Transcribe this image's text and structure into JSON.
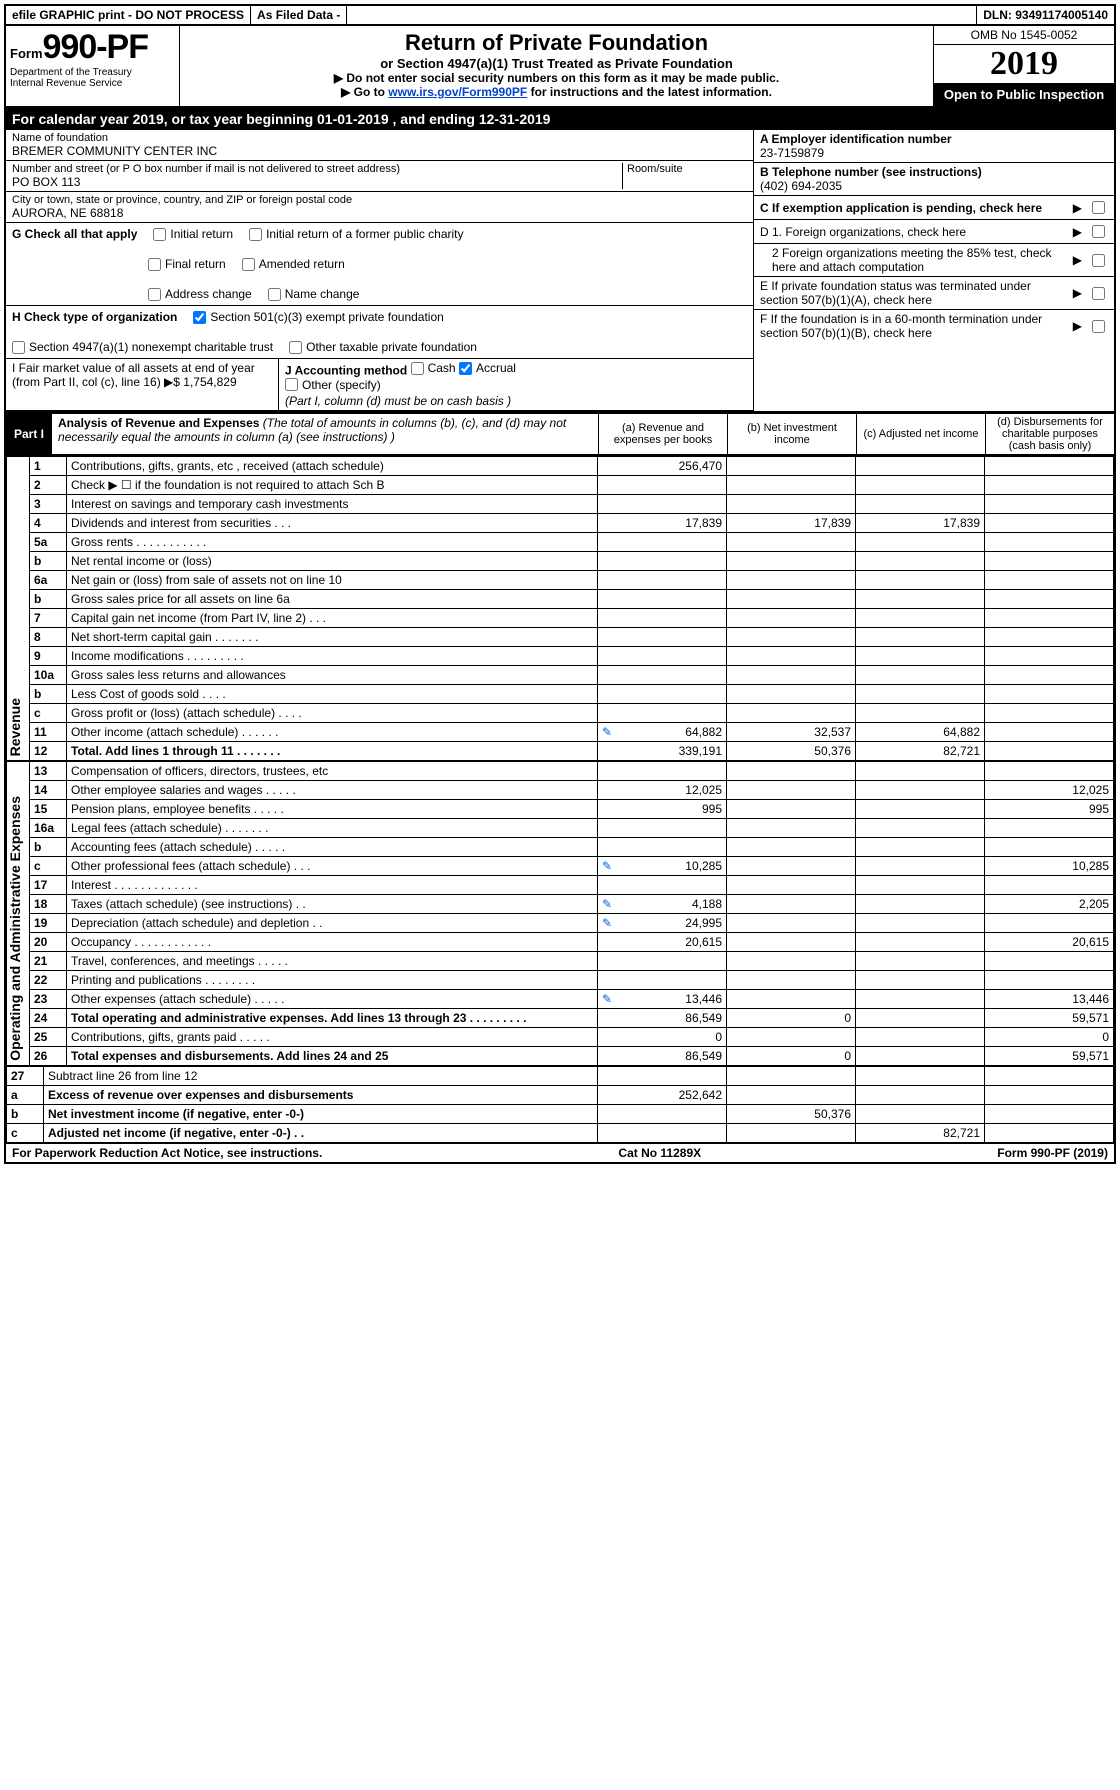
{
  "topbar": {
    "efile": "efile GRAPHIC print - DO NOT PROCESS",
    "asfiled": "As Filed Data -",
    "dln": "DLN: 93491174005140"
  },
  "header": {
    "form_prefix": "Form",
    "form_no": "990-PF",
    "dept1": "Department of the Treasury",
    "dept2": "Internal Revenue Service",
    "title": "Return of Private Foundation",
    "subtitle": "or Section 4947(a)(1) Trust Treated as Private Foundation",
    "note1": "▶ Do not enter social security numbers on this form as it may be made public.",
    "note2_pre": "▶ Go to ",
    "note2_link": "www.irs.gov/Form990PF",
    "note2_post": " for instructions and the latest information.",
    "omb": "OMB No 1545-0052",
    "year": "2019",
    "open": "Open to Public Inspection"
  },
  "calrow": "For calendar year 2019, or tax year beginning 01-01-2019          , and ending 12-31-2019",
  "id": {
    "name_lbl": "Name of foundation",
    "name": "BREMER COMMUNITY CENTER INC",
    "addr_lbl": "Number and street (or P O  box number if mail is not delivered to street address)",
    "addr": "PO BOX 113",
    "room_lbl": "Room/suite",
    "city_lbl": "City or town, state or province, country, and ZIP or foreign postal code",
    "city": "AURORA, NE  68818",
    "a_lbl": "A Employer identification number",
    "a_val": "23-7159879",
    "b_lbl": "B Telephone number (see instructions)",
    "b_val": "(402) 694-2035",
    "c_lbl": "C If exemption application is pending, check here"
  },
  "g": {
    "lbl": "G Check all that apply",
    "o1": "Initial return",
    "o2": "Initial return of a former public charity",
    "o3": "Final return",
    "o4": "Amended return",
    "o5": "Address change",
    "o6": "Name change"
  },
  "h": {
    "lbl": "H Check type of organization",
    "o1": "Section 501(c)(3) exempt private foundation",
    "o2": "Section 4947(a)(1) nonexempt charitable trust",
    "o3": "Other taxable private foundation"
  },
  "d": {
    "d1": "D 1. Foreign organizations, check here",
    "d2": "2 Foreign organizations meeting the 85% test, check here and attach computation",
    "e": "E  If private foundation status was terminated under section 507(b)(1)(A), check here",
    "f": "F  If the foundation is in a 60-month termination under section 507(b)(1)(B), check here"
  },
  "ij": {
    "i": "I Fair market value of all assets at end of year (from Part II, col (c), line 16) ▶$ 1,754,829",
    "j_lbl": "J Accounting method",
    "j_cash": "Cash",
    "j_accr": "Accrual",
    "j_other": "Other (specify)",
    "j_note": "(Part I, column (d) must be on cash basis )"
  },
  "part1": {
    "tag": "Part I",
    "title": "Analysis of Revenue and Expenses",
    "note": " (The total of amounts in columns (b), (c), and (d) may not necessarily equal the amounts in column (a) (see instructions) )",
    "col_a": "(a) Revenue and expenses per books",
    "col_b": "(b) Net investment income",
    "col_c": "(c) Adjusted net income",
    "col_d": "(d) Disbursements for charitable purposes (cash basis only)"
  },
  "side": {
    "rev": "Revenue",
    "exp": "Operating and Administrative Expenses"
  },
  "rows": [
    {
      "n": "1",
      "t": "Contributions, gifts, grants, etc , received (attach schedule)",
      "a": "256,470",
      "b": " ",
      "c": " ",
      "d": " ",
      "sA": 1,
      "sB": 0,
      "sC": 0,
      "sD": 0
    },
    {
      "n": "2",
      "t": "Check ▶ ☐ if the foundation is not required to attach Sch B",
      "a": " ",
      "b": " ",
      "c": " ",
      "d": " ",
      "sA": 1,
      "sB": 1,
      "sC": 1,
      "sD": 1
    },
    {
      "n": "3",
      "t": "Interest on savings and temporary cash investments",
      "a": "",
      "b": "",
      "c": "",
      "d": ""
    },
    {
      "n": "4",
      "t": "Dividends and interest from securities  .  .  .",
      "a": "17,839",
      "b": "17,839",
      "c": "17,839",
      "d": ""
    },
    {
      "n": "5a",
      "t": "Gross rents   .  .  .  .  .  .  .  .  .  .  .",
      "a": "",
      "b": "",
      "c": "",
      "d": ""
    },
    {
      "n": "b",
      "t": "Net rental income or (loss)",
      "a": "",
      "b": "",
      "c": "",
      "d": ""
    },
    {
      "n": "6a",
      "t": "Net gain or (loss) from sale of assets not on line 10",
      "a": "",
      "b": "",
      "c": "",
      "d": ""
    },
    {
      "n": "b",
      "t": "Gross sales price for all assets on line 6a",
      "a": "",
      "b": "",
      "c": "",
      "d": ""
    },
    {
      "n": "7",
      "t": "Capital gain net income (from Part IV, line 2)  .  .  .",
      "a": "",
      "b": "",
      "c": "",
      "d": ""
    },
    {
      "n": "8",
      "t": "Net short-term capital gain  .  .  .  .  .  .  .",
      "a": "",
      "b": "",
      "c": "",
      "d": ""
    },
    {
      "n": "9",
      "t": "Income modifications  .  .  .  .  .  .  .  .  .",
      "a": "",
      "b": "",
      "c": "",
      "d": ""
    },
    {
      "n": "10a",
      "t": "Gross sales less returns and allowances",
      "a": "",
      "b": "",
      "c": "",
      "d": ""
    },
    {
      "n": "b",
      "t": "Less Cost of goods sold  .  .  .  .",
      "a": "",
      "b": "",
      "c": "",
      "d": ""
    },
    {
      "n": "c",
      "t": "Gross profit or (loss) (attach schedule)  .  .  .  .",
      "a": "",
      "b": "",
      "c": "",
      "d": ""
    },
    {
      "n": "11",
      "t": "Other income (attach schedule)  .  .  .  .  .  .",
      "icon": true,
      "a": "64,882",
      "b": "32,537",
      "c": "64,882",
      "d": ""
    },
    {
      "n": "12",
      "t": "Total. Add lines 1 through 11  .  .  .  .  .  .  .",
      "bold": true,
      "a": "339,191",
      "b": "50,376",
      "c": "82,721",
      "d": ""
    }
  ],
  "rows_exp": [
    {
      "n": "13",
      "t": "Compensation of officers, directors, trustees, etc",
      "a": "",
      "b": "",
      "c": "",
      "d": ""
    },
    {
      "n": "14",
      "t": "Other employee salaries and wages  .  .  .  .  .",
      "a": "12,025",
      "b": "",
      "c": "",
      "d": "12,025"
    },
    {
      "n": "15",
      "t": "Pension plans, employee benefits  .  .  .  .  .",
      "a": "995",
      "b": "",
      "c": "",
      "d": "995"
    },
    {
      "n": "16a",
      "t": "Legal fees (attach schedule)  .  .  .  .  .  .  .",
      "a": "",
      "b": "",
      "c": "",
      "d": ""
    },
    {
      "n": "b",
      "t": "Accounting fees (attach schedule)  .  .  .  .  .",
      "a": "",
      "b": "",
      "c": "",
      "d": ""
    },
    {
      "n": "c",
      "t": "Other professional fees (attach schedule)  .  .  .",
      "icon": true,
      "a": "10,285",
      "b": "",
      "c": "",
      "d": "10,285"
    },
    {
      "n": "17",
      "t": "Interest  .  .  .  .  .  .  .  .  .  .  .  .  .",
      "a": "",
      "b": "",
      "c": "",
      "d": ""
    },
    {
      "n": "18",
      "t": "Taxes (attach schedule) (see instructions)  .  .",
      "icon": true,
      "a": "4,188",
      "b": "",
      "c": "",
      "d": "2,205"
    },
    {
      "n": "19",
      "t": "Depreciation (attach schedule) and depletion  .  .",
      "icon": true,
      "a": "24,995",
      "b": "",
      "c": "",
      "d": ""
    },
    {
      "n": "20",
      "t": "Occupancy  .  .  .  .  .  .  .  .  .  .  .  .",
      "a": "20,615",
      "b": "",
      "c": "",
      "d": "20,615"
    },
    {
      "n": "21",
      "t": "Travel, conferences, and meetings  .  .  .  .  .",
      "a": "",
      "b": "",
      "c": "",
      "d": ""
    },
    {
      "n": "22",
      "t": "Printing and publications  .  .  .  .  .  .  .  .",
      "a": "",
      "b": "",
      "c": "",
      "d": ""
    },
    {
      "n": "23",
      "t": "Other expenses (attach schedule)  .  .  .  .  .",
      "icon": true,
      "a": "13,446",
      "b": "",
      "c": "",
      "d": "13,446"
    },
    {
      "n": "24",
      "t": "Total operating and administrative expenses. Add lines 13 through 23  .  .  .  .  .  .  .  .  .",
      "bold": true,
      "a": "86,549",
      "b": "0",
      "c": "",
      "d": "59,571"
    },
    {
      "n": "25",
      "t": "Contributions, gifts, grants paid  .  .  .  .  .",
      "a": "0",
      "b": "",
      "c": "",
      "d": "0"
    },
    {
      "n": "26",
      "t": "Total expenses and disbursements. Add lines 24 and 25",
      "bold": true,
      "a": "86,549",
      "b": "0",
      "c": "",
      "d": "59,571"
    }
  ],
  "rows_net": [
    {
      "n": "27",
      "t": "Subtract line 26 from line 12",
      "a": "",
      "b": "",
      "c": "",
      "d": ""
    },
    {
      "n": "a",
      "t": "Excess of revenue over expenses and disbursements",
      "bold": true,
      "a": "252,642",
      "b": "",
      "c": "",
      "d": ""
    },
    {
      "n": "b",
      "t": "Net investment income (if negative, enter -0-)",
      "bold": true,
      "a": "",
      "b": "50,376",
      "c": "",
      "d": ""
    },
    {
      "n": "c",
      "t": "Adjusted net income (if negative, enter -0-)  .  .",
      "bold": true,
      "a": "",
      "b": "",
      "c": "82,721",
      "d": ""
    }
  ],
  "footer": {
    "left": "For Paperwork Reduction Act Notice, see instructions.",
    "mid": "Cat No 11289X",
    "right": "Form 990-PF (2019)"
  }
}
